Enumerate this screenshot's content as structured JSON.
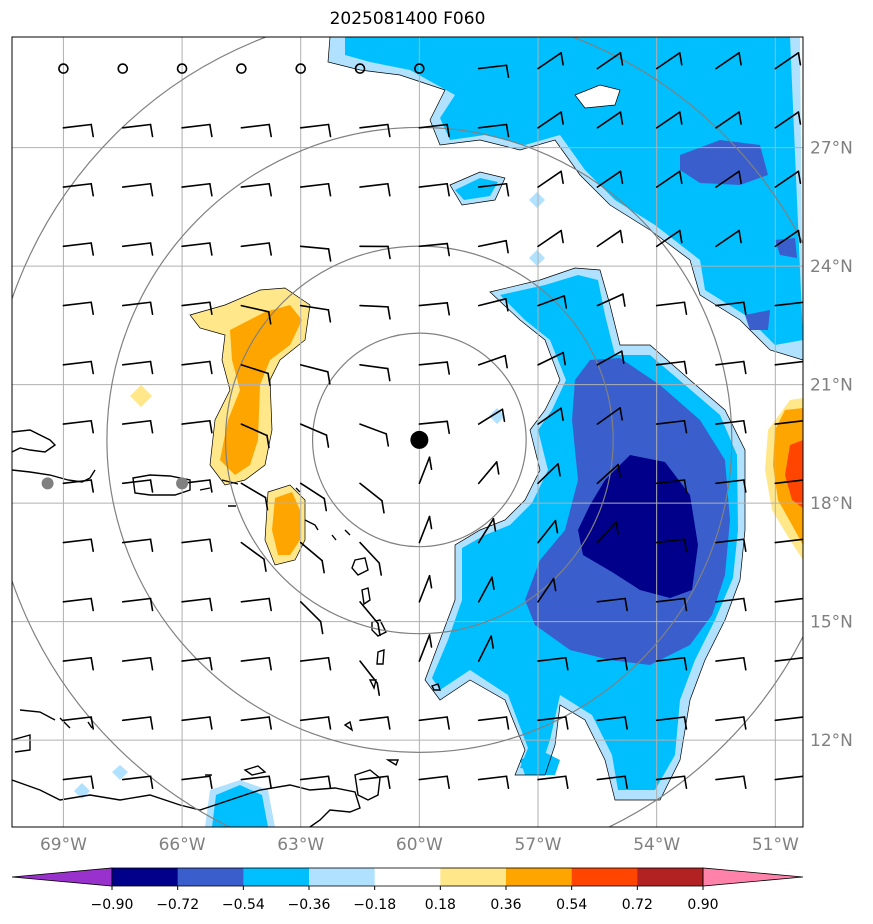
{
  "title": "2025081400 F060",
  "map": {
    "lon_range": [
      -70.3,
      -50.3
    ],
    "lat_range": [
      9.8,
      29.8
    ],
    "lon_ticks": [
      {
        "value": -69,
        "label": "69°W"
      },
      {
        "value": -66,
        "label": "66°W"
      },
      {
        "value": -63,
        "label": "63°W"
      },
      {
        "value": -60,
        "label": "60°W"
      },
      {
        "value": -57,
        "label": "57°W"
      },
      {
        "value": -54,
        "label": "54°W"
      },
      {
        "value": -51,
        "label": "51°W"
      }
    ],
    "lat_ticks": [
      {
        "value": 27,
        "label": "27°N"
      },
      {
        "value": 24,
        "label": "24°N"
      },
      {
        "value": 21,
        "label": "21°N"
      },
      {
        "value": 18,
        "label": "18°N"
      },
      {
        "value": 15,
        "label": "15°N"
      },
      {
        "value": 12,
        "label": "12°N"
      }
    ],
    "storm_center": {
      "lon": -60.0,
      "lat": 19.6
    },
    "range_rings_deg": [
      2.7,
      4.9,
      7.9,
      10.9
    ],
    "gray_markers": [
      {
        "lon": -69.4,
        "lat": 18.5
      },
      {
        "lon": -66.0,
        "lat": 18.5
      }
    ],
    "grid": true,
    "tick_label_color": "#808080"
  },
  "colorbar": {
    "ticks": [
      "−0.90",
      "−0.72",
      "−0.54",
      "−0.36",
      "−0.18",
      "0.18",
      "0.36",
      "0.54",
      "0.72",
      "0.90"
    ],
    "colors": [
      "#9932cc",
      "#00008b",
      "#3a5fcd",
      "#00bfff",
      "#b0e2ff",
      "#ffffff",
      "#ffe78a",
      "#ffa500",
      "#ff4500",
      "#b22222",
      "#ff82ab"
    ]
  }
}
